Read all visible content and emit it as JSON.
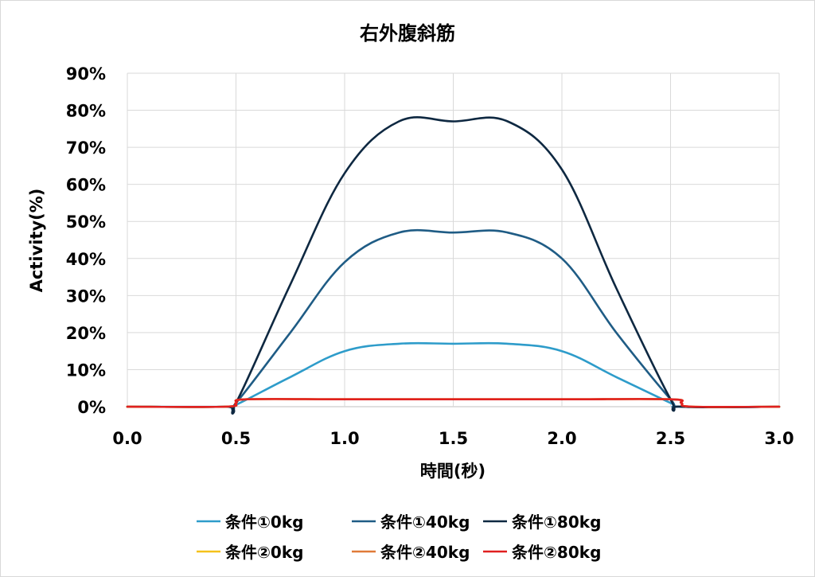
{
  "chart_data": {
    "type": "line",
    "title": "右外腹斜筋",
    "xlabel": "時間(秒)",
    "ylabel": "Activity(%)",
    "xlim": [
      0,
      3.0
    ],
    "ylim": [
      0,
      0.9
    ],
    "xticks": [
      0.0,
      0.5,
      1.0,
      1.5,
      2.0,
      2.5,
      3.0
    ],
    "xtick_labels": [
      "0.0",
      "0.5",
      "1.0",
      "1.5",
      "2.0",
      "2.5",
      "3.0"
    ],
    "yticks": [
      0,
      0.1,
      0.2,
      0.3,
      0.4,
      0.5,
      0.6,
      0.7,
      0.8,
      0.9
    ],
    "ytick_labels": [
      "0%",
      "10%",
      "20%",
      "30%",
      "40%",
      "50%",
      "60%",
      "70%",
      "80%",
      "90%"
    ],
    "grid": true,
    "legend_position": "bottom",
    "series": [
      {
        "name": "条件①0kg",
        "color": "#2E9CCA",
        "x": [
          0,
          0.45,
          0.5,
          0.75,
          1.0,
          1.25,
          1.5,
          1.75,
          2.0,
          2.25,
          2.5,
          2.55,
          3.0
        ],
        "y": [
          0,
          0,
          0.005,
          0.08,
          0.15,
          0.17,
          0.17,
          0.17,
          0.15,
          0.08,
          0.01,
          0,
          0
        ]
      },
      {
        "name": "条件①40kg",
        "color": "#1F5C85",
        "x": [
          0,
          0.45,
          0.5,
          0.75,
          1.0,
          1.25,
          1.5,
          1.75,
          2.0,
          2.25,
          2.5,
          2.55,
          3.0
        ],
        "y": [
          0,
          0,
          0.01,
          0.2,
          0.39,
          0.47,
          0.47,
          0.47,
          0.4,
          0.2,
          0.02,
          0,
          0
        ]
      },
      {
        "name": "条件①80kg",
        "color": "#0E2841",
        "x": [
          0,
          0.45,
          0.5,
          0.75,
          1.0,
          1.25,
          1.5,
          1.75,
          2.0,
          2.25,
          2.5,
          2.55,
          3.0
        ],
        "y": [
          0,
          0,
          0.01,
          0.33,
          0.63,
          0.77,
          0.77,
          0.77,
          0.64,
          0.32,
          0.02,
          0,
          0
        ]
      },
      {
        "name": "条件②0kg",
        "color": "#F5C21B",
        "x": [
          0,
          0.45,
          0.5,
          0.55,
          1.0,
          1.5,
          2.0,
          2.5,
          2.55,
          2.6,
          3.0
        ],
        "y": [
          0,
          0,
          0.01,
          0.02,
          0.02,
          0.02,
          0.02,
          0.02,
          0.01,
          0,
          0
        ]
      },
      {
        "name": "条件②40kg",
        "color": "#E07B39",
        "x": [
          0,
          0.45,
          0.5,
          0.55,
          1.0,
          1.5,
          2.0,
          2.5,
          2.55,
          2.6,
          3.0
        ],
        "y": [
          0,
          0,
          0.01,
          0.02,
          0.02,
          0.02,
          0.02,
          0.02,
          0.01,
          0,
          0
        ]
      },
      {
        "name": "条件②80kg",
        "color": "#E02020",
        "x": [
          0,
          0.45,
          0.5,
          0.55,
          1.0,
          1.5,
          2.0,
          2.5,
          2.55,
          2.6,
          3.0
        ],
        "y": [
          0,
          0,
          0.01,
          0.02,
          0.02,
          0.02,
          0.02,
          0.02,
          0.01,
          0,
          0
        ]
      }
    ]
  }
}
